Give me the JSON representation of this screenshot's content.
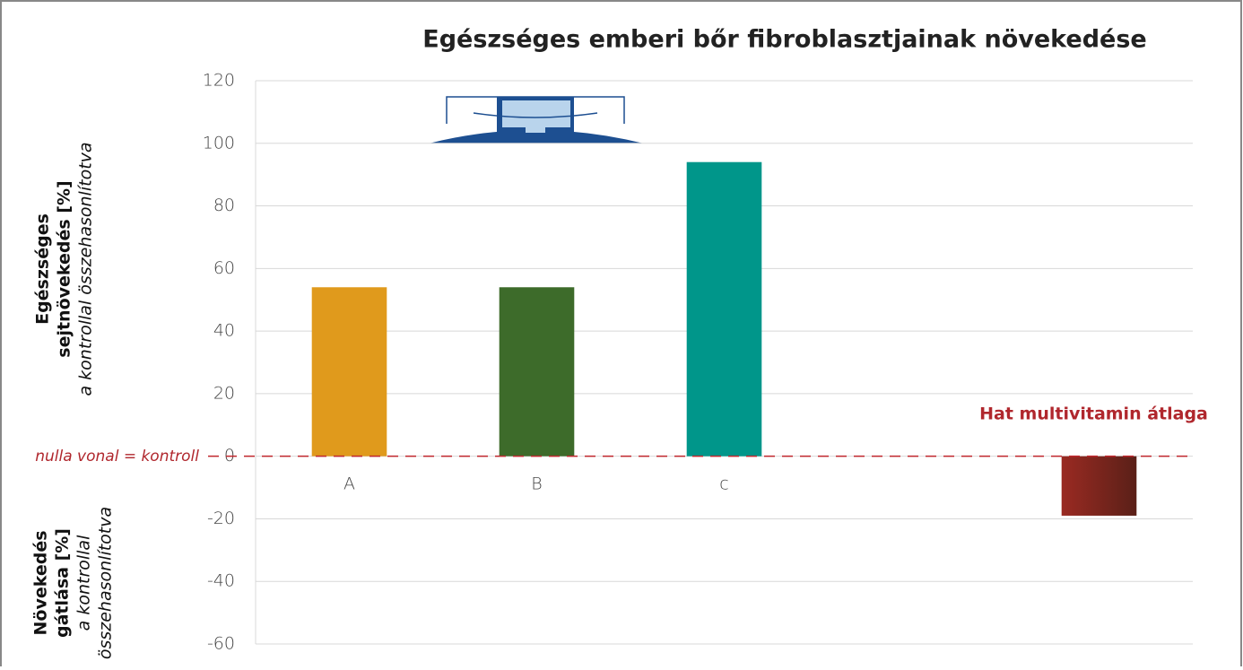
{
  "chart_data": {
    "type": "bar",
    "title": "Egészséges emberi bőr fibroblasztjainak növekedése",
    "categories": [
      "A",
      "B",
      "c",
      null,
      "Hat multivitamin átlaga"
    ],
    "values": [
      54,
      54,
      94,
      null,
      -19
    ],
    "colors": [
      "#e09a1c",
      "#3d6b2a",
      "#00968a",
      null,
      "#9a2a22"
    ],
    "ylim": [
      -60,
      120
    ],
    "yticks": [
      -60,
      -40,
      -20,
      0,
      20,
      40,
      60,
      80,
      100,
      120
    ],
    "grid": true,
    "annotation": "nulla vonal = kontroll",
    "ylabel_upper": [
      "Egészséges",
      "sejtnövekedés [%]"
    ],
    "ylabel_upper_note": "a kontrollal összehasonlítotva",
    "ylabel_lower": [
      "Növekedés",
      "gátlása [%]"
    ],
    "ylabel_lower_note": [
      "a kontrollal",
      "összehasonlítotva"
    ]
  }
}
